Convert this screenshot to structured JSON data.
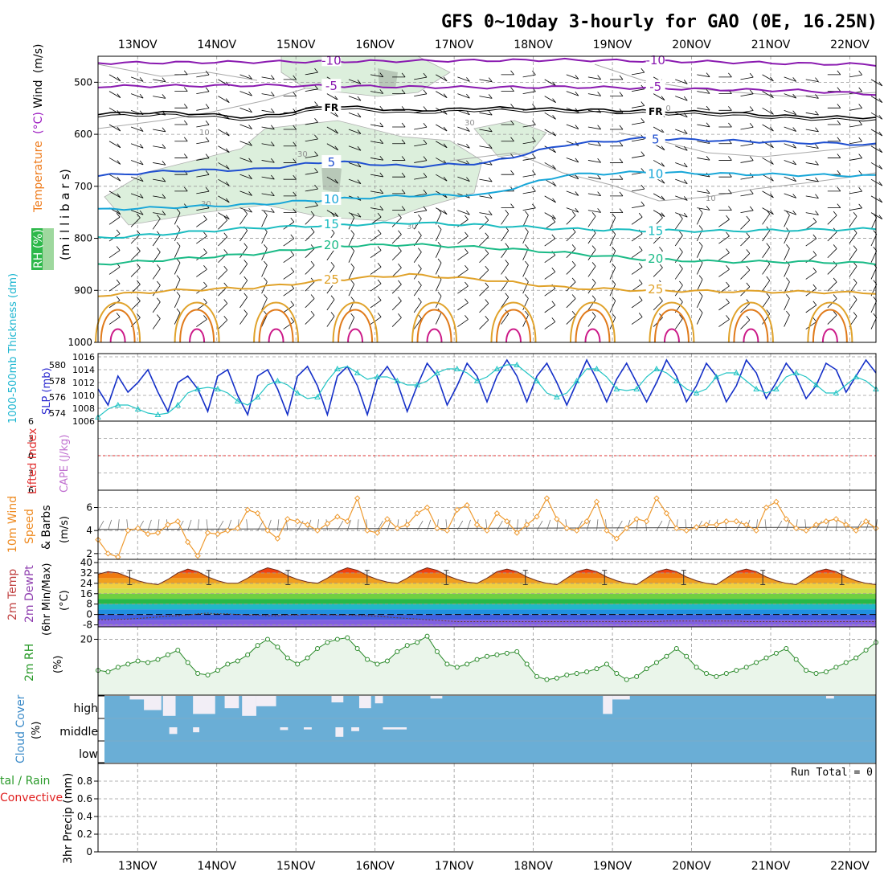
{
  "title": "GFS 0~10day 3-hourly for GAO (0E, 16.25N)",
  "colors": {
    "temp_purple": "#8a1ab0",
    "freezing_black": "#000000",
    "temp_blue": "#1f4fd0",
    "temp_lightblue": "#17a6d8",
    "temp_cyan": "#1bbcc0",
    "temp_teal": "#1aba86",
    "temp_gold": "#e0a22a",
    "temp_orange": "#e07a1a",
    "temp_magenta": "#cc1a88",
    "rh_fill": "#dcefdc",
    "slp_line": "#1530c8",
    "thickness_line": "#22c4c4",
    "wind10m_line": "#ee9a30",
    "cloud_fill": "#6aaed6",
    "rh2m_line": "#2a8a2a",
    "rh2m_fill": "#eaf5ea",
    "grid": "#9a9a9a"
  },
  "panels": {
    "upper": {
      "ylabel_wind": "Wind",
      "ylabel_wind_units": "(m/s)",
      "ylabel_temp": "Temperature",
      "ylabel_temp_units": "(°C)",
      "ylabel_rh": "RH (%)",
      "ylabel_pressure": "(m i l l i b a r s)",
      "freezing_label": "FR",
      "rh_contour_labels": [
        "10",
        "30"
      ]
    },
    "slp": {
      "ylabel_thickness": "1000-500mb Thickness (dm)",
      "ylabel_slp": "SLP (mb)"
    },
    "cape": {
      "ylabel_li": "Lifted Index",
      "ylabel_cape": "CAPE (J/kg)"
    },
    "wind10m": {
      "ylabel": "10m Wind",
      "ylabel2": "Speed",
      "ylabel3": "& Barbs",
      "units": "(m/s)"
    },
    "temp2m": {
      "ylabel1": "2m Temp",
      "ylabel2": "2m DewPt",
      "ylabel3": "(6hr Min/Max)",
      "units": "(°C)"
    },
    "rh2m": {
      "ylabel": "2m RH",
      "units": "(%)"
    },
    "cloud": {
      "ylabel": "Cloud Cover",
      "units": "(%)",
      "levels": [
        "high",
        "middle",
        "low"
      ]
    },
    "precip": {
      "ylabel1": "tal / Rain",
      "ylabel2": "Convective",
      "ylabel3": "3hr Precip (mm)",
      "run_total": "Run Total = 0"
    }
  },
  "chart_data": [
    {
      "panel": "upper_air",
      "type": "line",
      "x": [
        "13NOV",
        "14NOV",
        "15NOV",
        "16NOV",
        "17NOV",
        "18NOV",
        "19NOV",
        "20NOV",
        "21NOV",
        "22NOV"
      ],
      "x_days_range": [
        12.5,
        22.33
      ],
      "ylabel": "millibars",
      "ylim": [
        1000,
        450
      ],
      "yticks": [
        500,
        600,
        700,
        800,
        900,
        1000
      ],
      "grid": true,
      "isotherms": [
        {
          "label": "-10",
          "color": "purple",
          "p": [
            463,
            462,
            461,
            460,
            459,
            458,
            457,
            459,
            461,
            464,
            466
          ]
        },
        {
          "label": "-5",
          "color": "purple",
          "p": [
            508,
            507,
            506,
            507,
            509,
            510,
            509,
            511,
            514,
            516,
            523
          ]
        },
        {
          "label": "FR",
          "color": "black",
          "p": [
            560,
            558,
            568,
            545,
            555,
            549,
            552,
            555,
            558,
            566,
            568
          ]
        },
        {
          "label": "5",
          "color": "blue",
          "p": [
            680,
            670,
            668,
            652,
            662,
            655,
            620,
            608,
            612,
            616,
            620
          ]
        },
        {
          "label": "10",
          "color": "lightblue",
          "p": [
            745,
            740,
            735,
            725,
            718,
            716,
            678,
            673,
            676,
            678,
            680
          ]
        },
        {
          "label": "15",
          "color": "cyan",
          "p": [
            800,
            790,
            780,
            775,
            770,
            775,
            782,
            785,
            786,
            784,
            782
          ]
        },
        {
          "label": "20",
          "color": "teal",
          "p": [
            850,
            840,
            830,
            815,
            812,
            818,
            828,
            840,
            845,
            845,
            848
          ]
        },
        {
          "label": "25",
          "color": "gold",
          "p": [
            910,
            900,
            895,
            880,
            870,
            880,
            895,
            900,
            902,
            903,
            905
          ]
        }
      ]
    },
    {
      "panel": "slp_thickness",
      "type": "line",
      "ylim_slp": [
        1006,
        1016
      ],
      "yticks_slp": [
        1006,
        1008,
        1010,
        1012,
        1014,
        1016
      ],
      "ylim_thickness": [
        573,
        581
      ],
      "yticks_thickness": [
        574,
        576,
        578,
        580
      ],
      "series": [
        {
          "name": "SLP (mb)",
          "values": [
            1011,
            1008.5,
            1013,
            1010.5,
            1012,
            1014,
            1010.5,
            1007.5,
            1012,
            1013,
            1011,
            1007.5,
            1013,
            1014,
            1010,
            1007,
            1013,
            1014,
            1011,
            1007,
            1013,
            1014.5,
            1011.5,
            1007,
            1013,
            1014.5,
            1011.5,
            1007,
            1012.5,
            1014.5,
            1012,
            1007.5,
            1011.5,
            1015,
            1013,
            1008.5,
            1011.5,
            1015,
            1013,
            1009,
            1013,
            1015.5,
            1013,
            1009,
            1013,
            1015,
            1012,
            1008.5,
            1012,
            1015.5,
            1012.5,
            1009,
            1012.5,
            1015,
            1012,
            1009,
            1012,
            1015.5,
            1013,
            1009,
            1011.5,
            1015,
            1013,
            1009,
            1011.5,
            1015.5,
            1013.5,
            1009.5,
            1012,
            1015,
            1013,
            1009.5,
            1011.5,
            1015,
            1014,
            1010.5,
            1013,
            1015.5,
            1013.5
          ]
        },
        {
          "name": "1000-500mb Thickness (dm)",
          "values": [
            573.5,
            574.5,
            575,
            575,
            574.5,
            574,
            573.8,
            574,
            575,
            576.5,
            577,
            577.2,
            577,
            576.5,
            575.5,
            575,
            576,
            577.5,
            578,
            577.5,
            576.5,
            575.8,
            576,
            578,
            579.5,
            579.8,
            579,
            578.2,
            578.5,
            578.5,
            578,
            577.5,
            577.5,
            578,
            579,
            579.5,
            579.5,
            579,
            578,
            578.5,
            579.5,
            580,
            580,
            579,
            578,
            576.5,
            576,
            576.5,
            578,
            579.5,
            579.5,
            578.5,
            577,
            576.8,
            577,
            578.5,
            579.5,
            579,
            578,
            577,
            576.5,
            577,
            578.5,
            579,
            579,
            578,
            577,
            576.5,
            577,
            578.5,
            579,
            578.5,
            577.5,
            576.5,
            576.5,
            577.5,
            578.5,
            578,
            577
          ]
        }
      ]
    },
    {
      "panel": "lifted_index_cape",
      "type": "line",
      "ylim": [
        6,
        -6
      ],
      "yticks": [
        6,
        3,
        0,
        -3,
        -6
      ],
      "zero_line": 0
    },
    {
      "panel": "wind10m",
      "type": "line",
      "ylim": [
        1.5,
        7.5
      ],
      "yticks": [
        2,
        4,
        6
      ],
      "series": [
        {
          "name": "10m Wind Speed",
          "values": [
            3.2,
            2.0,
            1.7,
            4.0,
            4.2,
            3.7,
            3.8,
            4.5,
            4.8,
            3.0,
            1.8,
            3.8,
            3.7,
            4.0,
            4.2,
            5.8,
            5.5,
            4.0,
            3.3,
            5.0,
            4.8,
            4.5,
            4.0,
            4.6,
            5.2,
            4.8,
            6.8,
            4.0,
            3.8,
            5.0,
            4.2,
            4.5,
            5.5,
            6.0,
            4.2,
            4.0,
            5.8,
            6.2,
            4.5,
            4.0,
            5.5,
            4.8,
            3.8,
            4.5,
            5.2,
            6.8,
            5.0,
            4.2,
            4.0,
            4.8,
            6.5,
            4.0,
            3.3,
            4.2,
            5.0,
            4.8,
            6.8,
            5.5,
            4.2,
            4.0,
            4.3,
            4.5,
            4.5,
            4.8,
            4.8,
            4.5,
            4.0,
            6.0,
            6.5,
            5.0,
            4.2,
            4.0,
            4.5,
            4.8,
            5.0,
            4.5,
            4.0,
            4.8,
            4.2
          ]
        }
      ]
    },
    {
      "panel": "temp2m",
      "type": "area",
      "ylim": [
        -12,
        40
      ],
      "yticks": [
        -8,
        0,
        8,
        16,
        24,
        32,
        40
      ],
      "series": [
        {
          "name": "2m Temp",
          "values": [
            31,
            33,
            32,
            29,
            26,
            24,
            23,
            27,
            32,
            35,
            33,
            29,
            26,
            24,
            24,
            28,
            33,
            36,
            34,
            30,
            27,
            25,
            24,
            28,
            33,
            36,
            34,
            30,
            27,
            25,
            24,
            28,
            33,
            36,
            34,
            30,
            27,
            25,
            24,
            28,
            33,
            35,
            33,
            29,
            26,
            24,
            23,
            28,
            33,
            35,
            33,
            29,
            26,
            24,
            23,
            28,
            33,
            35,
            33,
            29,
            26,
            24,
            23,
            28,
            33,
            35,
            33,
            29,
            26,
            24,
            23,
            28,
            33,
            35,
            33,
            29,
            26,
            24,
            23
          ]
        },
        {
          "name": "2m DewPt",
          "values": [
            -4,
            -4,
            -3.8,
            -3.5,
            -3,
            -2.5,
            -2,
            -1.5,
            -1,
            -0.5,
            0.5,
            1,
            0.5,
            0.5,
            0,
            -0.5,
            -0.5,
            -1,
            -1,
            -0.5,
            -0.5,
            0,
            0,
            -0.3,
            -0.5,
            -0.5,
            -0.8,
            -1,
            -1.5,
            -2,
            -2.5,
            -3,
            -3.5,
            -4,
            -4.5,
            -5,
            -5.5,
            -5.5,
            -5.5,
            -5.5,
            -5.5,
            -5.5,
            -5.5,
            -5.5,
            -5.5,
            -5.5,
            -5.5,
            -5.5,
            -5.5,
            -5.5,
            -5.5,
            -5.5,
            -5.5,
            -5.5,
            -5.5,
            -5.5,
            -5.5,
            -5,
            -5,
            -5,
            -5,
            -5,
            -5,
            -5,
            -5,
            -5.5,
            -5.5,
            -5.5,
            -5.5,
            -5.5,
            -5.5,
            -5.5,
            -5.5,
            -5.5,
            -5.5,
            -5.5,
            -5.5,
            -5.5,
            -5.5
          ]
        }
      ]
    },
    {
      "panel": "rh2m",
      "type": "line",
      "ylim": [
        2,
        24
      ],
      "yticks": [
        20
      ],
      "series": [
        {
          "name": "2m RH",
          "values": [
            10,
            9.5,
            11,
            12,
            13,
            12.5,
            13.5,
            15,
            16.5,
            12.5,
            9,
            8.5,
            10,
            12,
            13,
            15,
            18,
            20,
            17.5,
            14,
            12,
            14,
            17,
            19,
            20,
            20.5,
            17,
            13.5,
            12,
            13,
            16,
            18,
            19,
            21,
            16,
            12,
            11,
            12,
            13.5,
            14.5,
            15,
            15.5,
            16,
            12,
            8,
            7,
            7.5,
            8.5,
            9,
            9.5,
            10.5,
            12,
            9,
            7,
            8,
            10.5,
            12.5,
            14.5,
            17,
            14.5,
            11,
            9,
            8,
            9,
            10,
            11,
            12.5,
            14,
            15.5,
            17,
            13.5,
            10,
            9,
            9.5,
            11,
            12.5,
            14,
            16.5,
            19
          ]
        }
      ]
    },
    {
      "panel": "cloud_cover",
      "type": "heatmap",
      "levels": [
        "high",
        "middle",
        "low"
      ],
      "background_percent": 0,
      "high_gaps": [
        [
          0.4,
          0.72,
          0.1
        ],
        [
          0.58,
          0.8,
          0.65
        ],
        [
          0.82,
          0.98,
          0.95
        ],
        [
          1.2,
          1.48,
          0.85
        ],
        [
          1.6,
          1.78,
          0.55
        ],
        [
          1.82,
          2.0,
          0.95
        ],
        [
          2.0,
          2.25,
          0.45
        ],
        [
          2.95,
          3.1,
          0.25
        ],
        [
          3.3,
          3.45,
          0.55
        ],
        [
          3.5,
          3.6,
          0.3
        ],
        [
          4.2,
          4.35,
          0.05
        ],
        [
          6.38,
          6.5,
          0.85
        ],
        [
          6.5,
          6.72,
          0.1
        ],
        [
          9.2,
          9.3,
          0.05
        ]
      ],
      "middle_gaps": [
        [
          0.9,
          1.0,
          0.45
        ],
        [
          1.2,
          1.28,
          0.3
        ],
        [
          3.0,
          3.1,
          0.7
        ],
        [
          3.2,
          3.3,
          0.2
        ],
        [
          2.3,
          2.4,
          0.1
        ],
        [
          2.6,
          2.7,
          0.05
        ],
        [
          3.6,
          3.9,
          0.05
        ]
      ]
    },
    {
      "panel": "precip3hr",
      "type": "bar",
      "ylim": [
        0,
        1
      ],
      "yticks": [
        0,
        0.2,
        0.4,
        0.6,
        0.8
      ],
      "values": []
    }
  ]
}
